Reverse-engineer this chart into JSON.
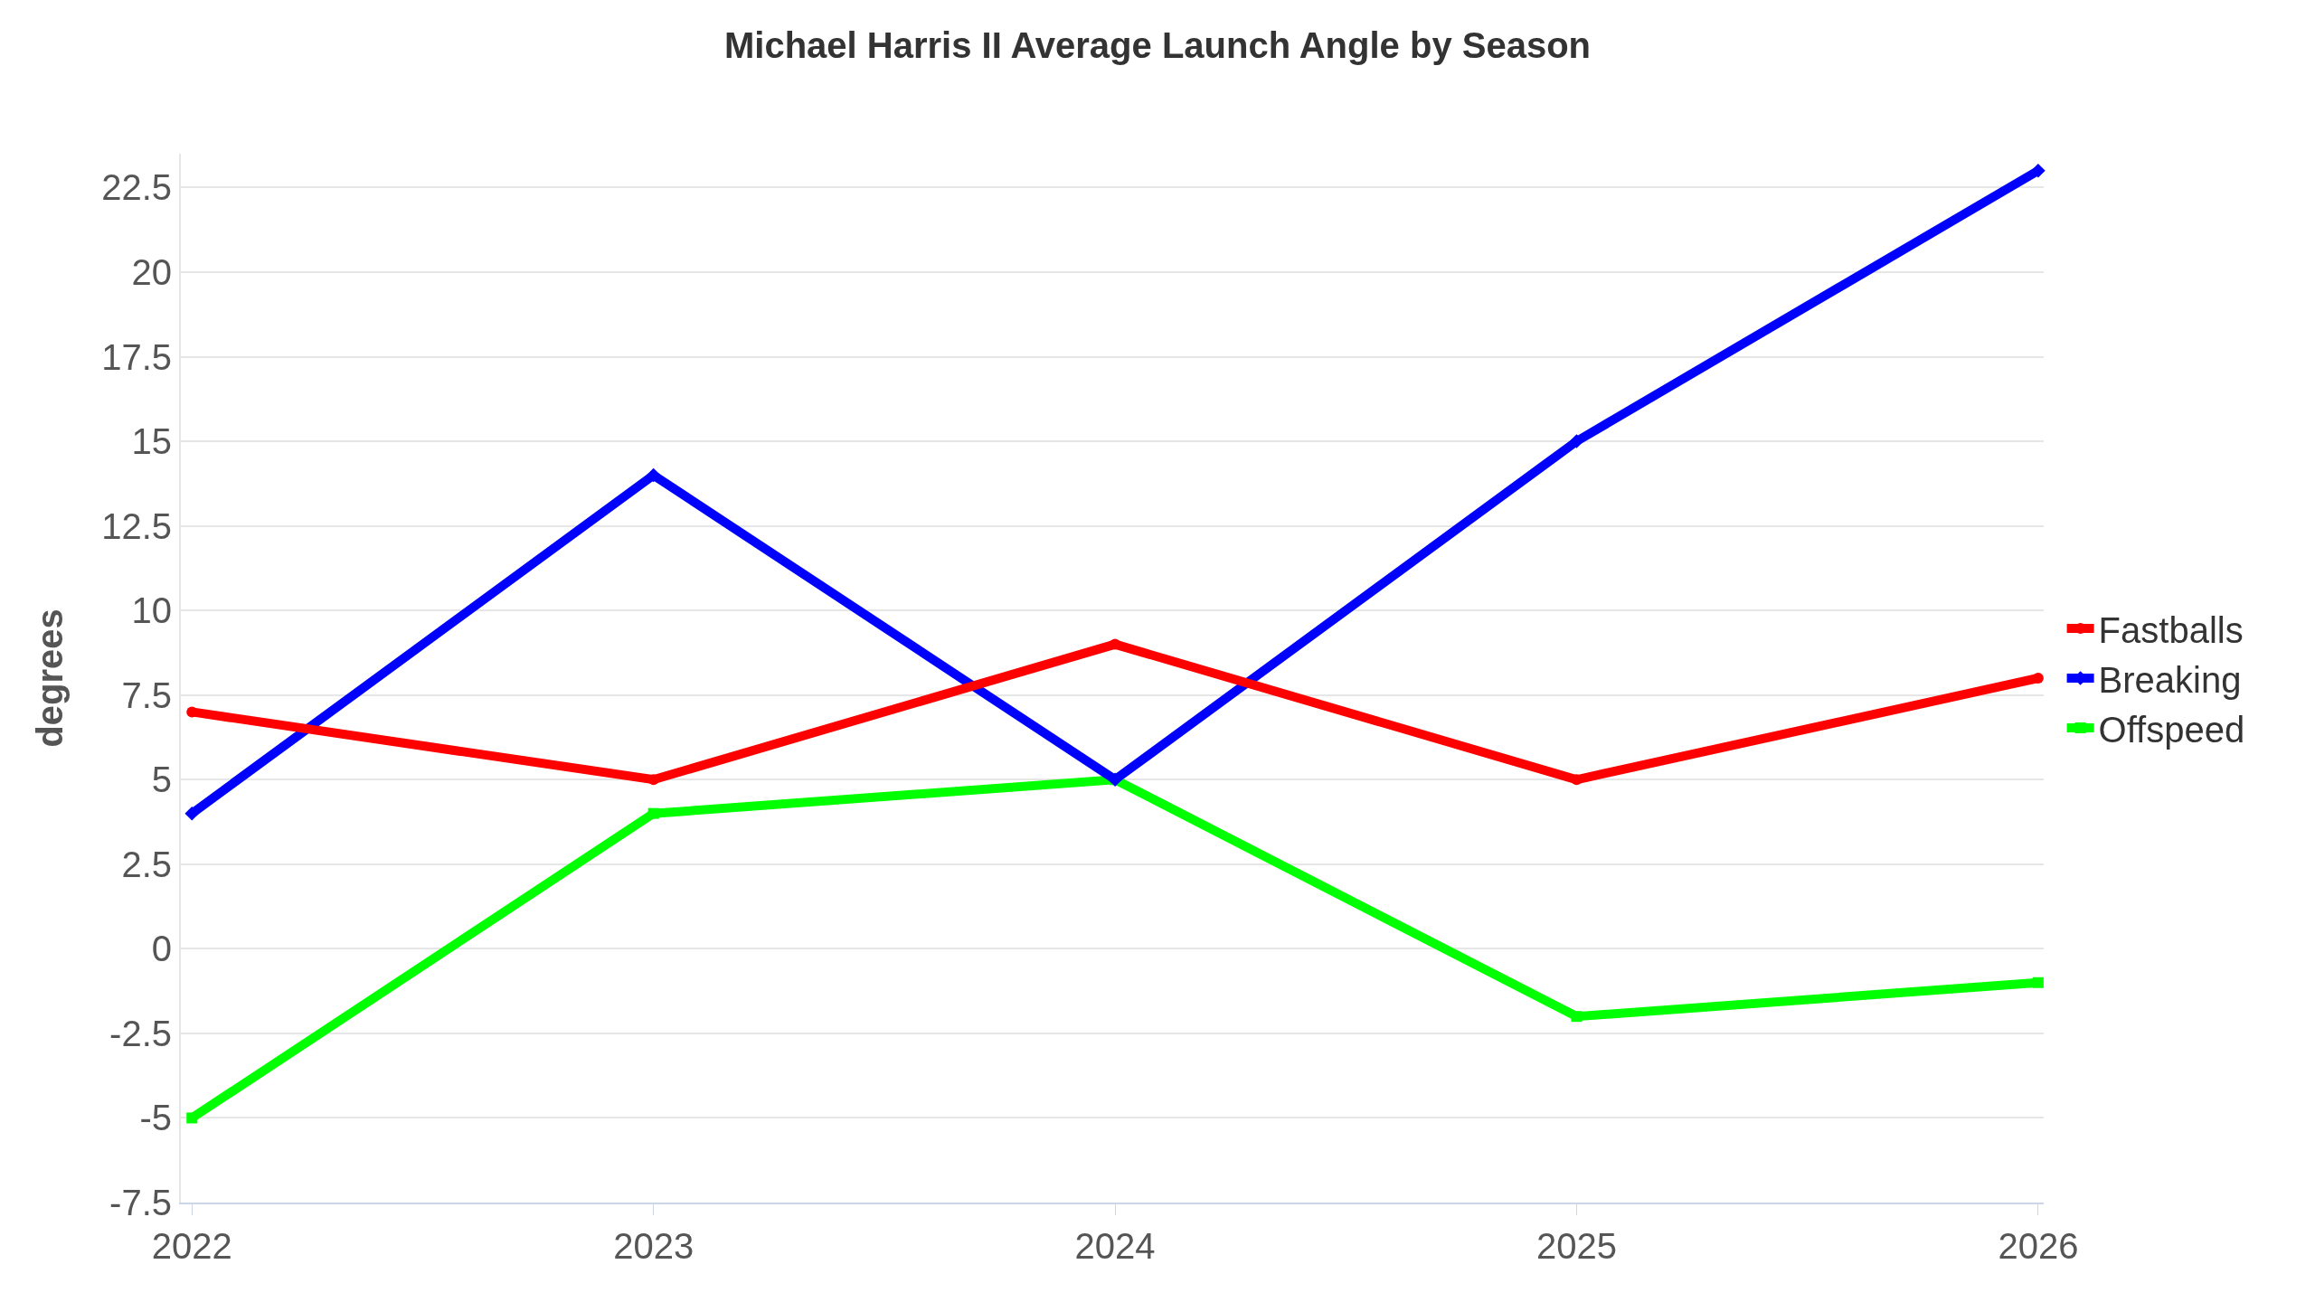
{
  "chart_data": {
    "type": "line",
    "title": "Michael Harris II Average Launch Angle by Season",
    "ylabel": "degrees",
    "categories": [
      "2022",
      "2023",
      "2024",
      "2025",
      "2026"
    ],
    "series": [
      {
        "name": "Fastballs",
        "color": "#ff0000",
        "marker": "circle",
        "values": [
          7,
          5,
          9,
          5,
          8
        ]
      },
      {
        "name": "Breaking",
        "color": "#0000ff",
        "marker": "diamond",
        "values": [
          4,
          14,
          5,
          15,
          23
        ]
      },
      {
        "name": "Offspeed",
        "color": "#00ff00",
        "marker": "square",
        "values": [
          -5,
          4,
          5,
          -2,
          -1
        ]
      }
    ],
    "ylim": [
      -7.5,
      23.5
    ],
    "yticks": [
      -7.5,
      -5,
      -2.5,
      0,
      2.5,
      5,
      7.5,
      10,
      12.5,
      15,
      17.5,
      20,
      22.5
    ],
    "grid": "y",
    "legend": "right",
    "line_style": "solid"
  }
}
